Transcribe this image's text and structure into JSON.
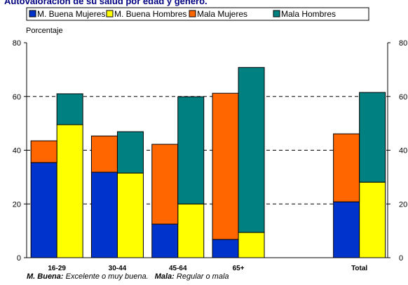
{
  "chart_data": {
    "type": "bar",
    "title": "Autovaloración de su salud por edad y género.",
    "y_label": "Porcentaje",
    "categories": [
      "16-29",
      "30-44",
      "45-64",
      "65+",
      null,
      "Total"
    ],
    "series": [
      {
        "name": "M. Buena Mujeres",
        "color": "#0033cc",
        "values": [
          35.4,
          31.8,
          12.5,
          6.8,
          null,
          20.8
        ]
      },
      {
        "name": "M. Buena Hombres",
        "color": "#ffff00",
        "values": [
          49.5,
          31.5,
          20.0,
          9.4,
          null,
          28.1
        ]
      },
      {
        "name": "Mala Mujeres",
        "color": "#ff6600",
        "values": [
          8.1,
          13.5,
          29.7,
          54.4,
          null,
          25.3
        ]
      },
      {
        "name": "Mala Hombres",
        "color": "#008080",
        "values": [
          11.5,
          15.4,
          39.9,
          61.4,
          null,
          33.4
        ]
      }
    ],
    "ylim": [
      0,
      80
    ],
    "yticks": [
      0,
      20,
      40,
      60,
      80
    ],
    "y2lim": [
      0,
      80
    ],
    "y2ticks": [
      0,
      20,
      40,
      60,
      80
    ],
    "grid": true,
    "footnote": [
      "M. Buena:",
      "Excelente o muy buena.",
      "Mala:",
      "Regular o mala"
    ]
  }
}
